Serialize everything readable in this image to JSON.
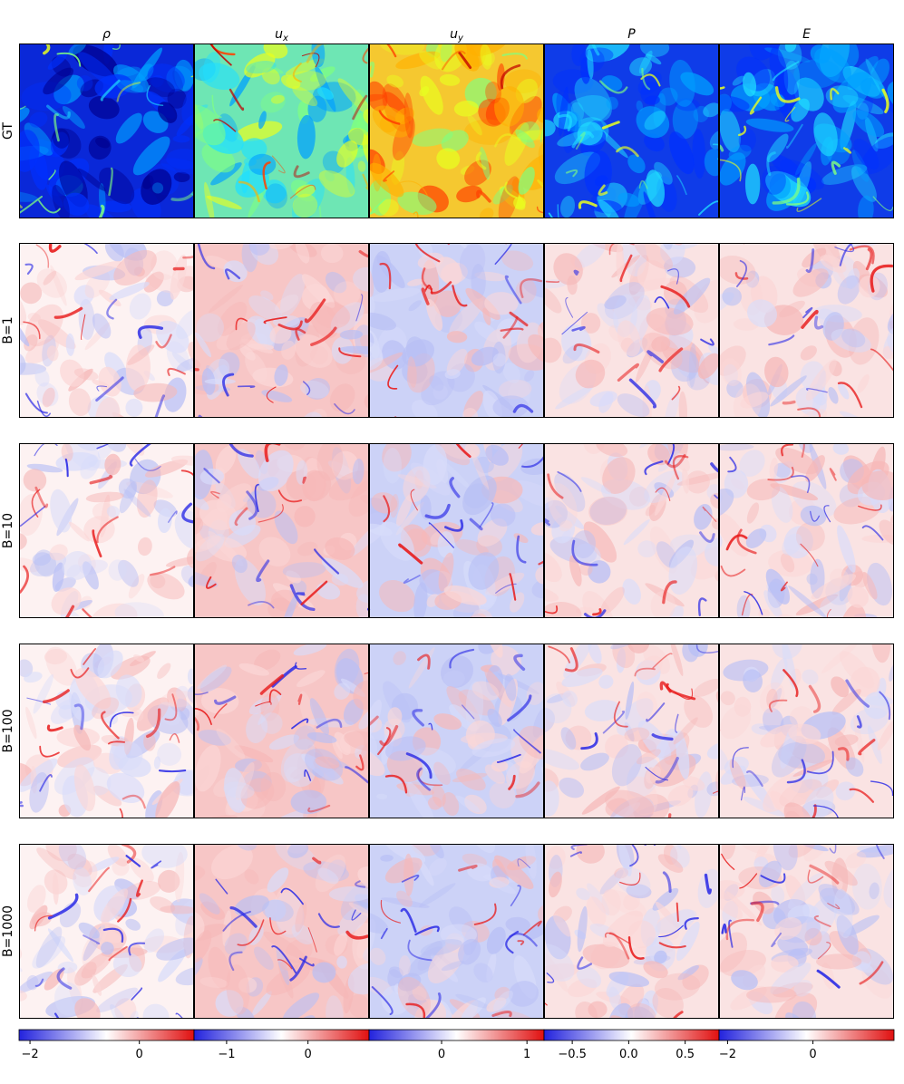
{
  "chart_data": {
    "type": "heatmap",
    "layout": "grid of field snapshots (5 columns x 5 rows) with one shared colorbar per column",
    "columns": [
      {
        "id": "rho",
        "label": "ρ",
        "label_sub": ""
      },
      {
        "id": "ux",
        "label": "u",
        "label_sub": "x"
      },
      {
        "id": "uy",
        "label": "u",
        "label_sub": "y"
      },
      {
        "id": "P",
        "label": "P",
        "label_sub": ""
      },
      {
        "id": "E",
        "label": "E",
        "label_sub": ""
      }
    ],
    "rows": [
      {
        "id": "gt",
        "label": "GT",
        "colormap": "jet"
      },
      {
        "id": "b1",
        "label": "B=1",
        "colormap": "bwr"
      },
      {
        "id": "b10",
        "label": "B=10",
        "colormap": "bwr"
      },
      {
        "id": "b100",
        "label": "B=100",
        "colormap": "bwr"
      },
      {
        "id": "b1000",
        "label": "B=1000",
        "colormap": "bwr"
      }
    ],
    "colorbars": [
      {
        "column": "rho",
        "colormap": "bwr",
        "range": [
          -2.2,
          1.0
        ],
        "ticks": [
          {
            "value": -2,
            "label": "−2"
          },
          {
            "value": 0,
            "label": "0"
          }
        ]
      },
      {
        "column": "ux",
        "colormap": "bwr",
        "range": [
          -1.4,
          0.75
        ],
        "ticks": [
          {
            "value": -1,
            "label": "−1"
          },
          {
            "value": 0,
            "label": "0"
          }
        ]
      },
      {
        "column": "uy",
        "colormap": "bwr",
        "range": [
          -0.85,
          1.2
        ],
        "ticks": [
          {
            "value": 0,
            "label": "0"
          },
          {
            "value": 1,
            "label": "1"
          }
        ]
      },
      {
        "column": "P",
        "colormap": "bwr",
        "range": [
          -0.75,
          0.8
        ],
        "ticks": [
          {
            "value": -0.5,
            "label": "−0.5"
          },
          {
            "value": 0.0,
            "label": "0.0"
          },
          {
            "value": 0.5,
            "label": "0.5"
          }
        ]
      },
      {
        "column": "E",
        "colormap": "bwr",
        "range": [
          -2.2,
          1.9
        ],
        "ticks": [
          {
            "value": -2,
            "label": "−2"
          },
          {
            "value": 0,
            "label": "0"
          }
        ]
      }
    ],
    "colors": {
      "bwr_low": "#2020e0",
      "bwr_mid": "#ffffff",
      "bwr_high": "#e01010",
      "jet_low": "#00008f",
      "jet_high": "#800000"
    }
  }
}
